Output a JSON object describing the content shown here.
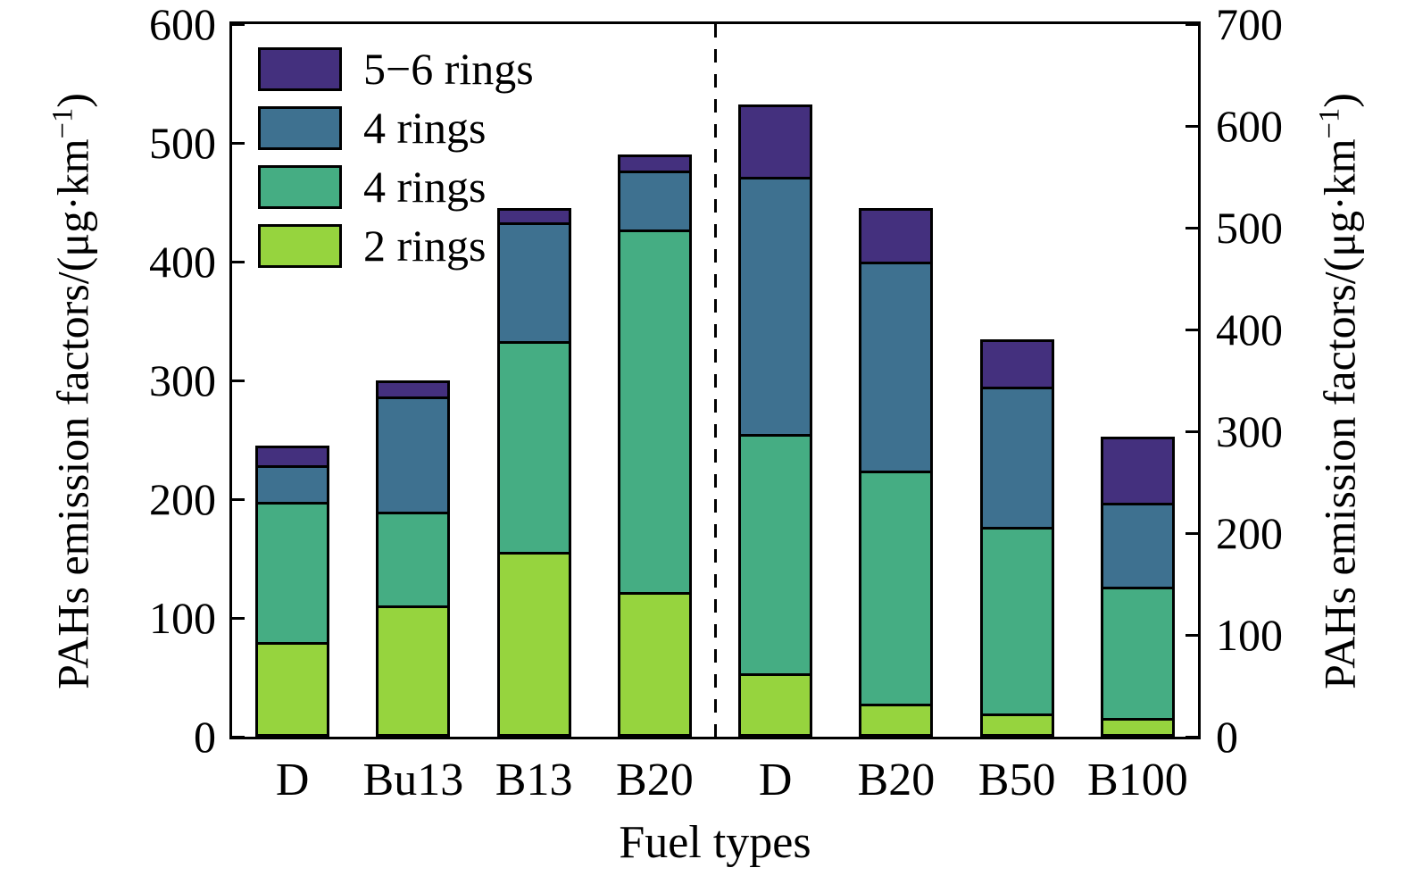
{
  "chart_data": {
    "type": "bar",
    "stacked": true,
    "categories": [
      "D",
      "Bu13",
      "B13",
      "B20",
      "D",
      "B20",
      "B50",
      "B100"
    ],
    "bar_axis": [
      "left",
      "left",
      "left",
      "left",
      "right",
      "right",
      "right",
      "right"
    ],
    "series": [
      {
        "name": "2 rings",
        "color": "#96d43e",
        "values": [
          79,
          110,
          155,
          120,
          58,
          28,
          18,
          14
        ]
      },
      {
        "name": "4 rings",
        "color": "#45ad83",
        "values": [
          121,
          80,
          180,
          310,
          238,
          232,
          187,
          132
        ]
      },
      {
        "name": "4 rings",
        "color": "#3e7190",
        "values": [
          30,
          98,
          100,
          49,
          255,
          208,
          140,
          84
        ]
      },
      {
        "name": "5−6 rings",
        "color": "#44307e",
        "values": [
          15,
          12,
          10,
          11,
          70,
          51,
          45,
          65
        ]
      }
    ],
    "totals": [
      245,
      300,
      445,
      490,
      621,
      519,
      390,
      295
    ],
    "left_axis": {
      "lim": [
        0,
        600
      ],
      "ticks": [
        "0",
        "100",
        "200",
        "300",
        "400",
        "500",
        "600"
      ],
      "label_prefix": "PAHs emission factors/(μg·km",
      "label_sup": "−1",
      "label_suffix": ")"
    },
    "right_axis": {
      "lim": [
        0,
        700
      ],
      "ticks": [
        "0",
        "100",
        "200",
        "300",
        "400",
        "500",
        "600",
        "700"
      ],
      "label_prefix": "PAHs emission factors/(μg·km",
      "label_sup": "−1",
      "label_suffix": ")"
    },
    "xlabel": "Fuel types",
    "legend": [
      {
        "label": "5−6 rings",
        "color": "#44307e"
      },
      {
        "label": "4 rings",
        "color": "#3e7190"
      },
      {
        "label": "4 rings",
        "color": "#45ad83"
      },
      {
        "label": "2 rings",
        "color": "#96d43e"
      }
    ],
    "divider_after_index": 3,
    "grid": false,
    "legend_position": "upper-left-inside"
  }
}
